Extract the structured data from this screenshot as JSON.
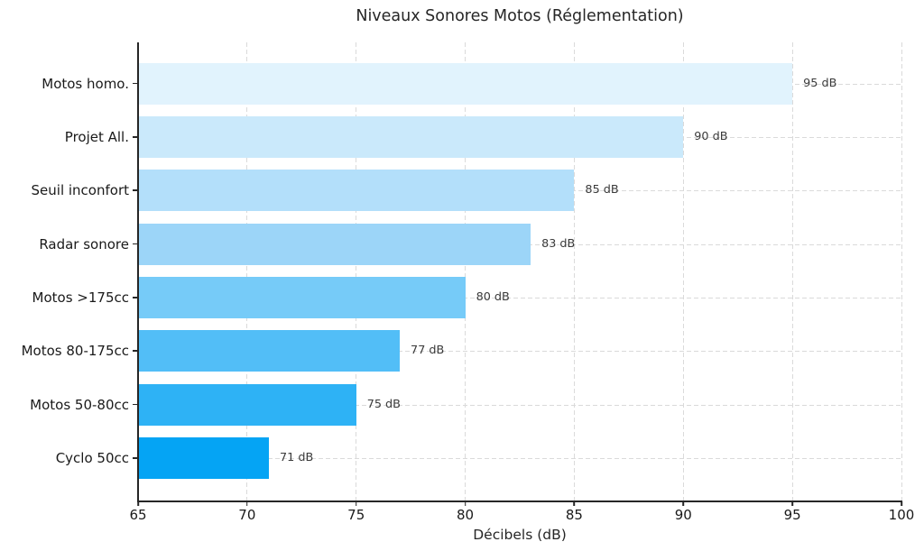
{
  "chart_data": {
    "type": "bar",
    "orientation": "horizontal",
    "title": "Niveaux Sonores Motos (Réglementation)",
    "xlabel": "Décibels (dB)",
    "categories": [
      "Motos homo.",
      "Projet All.",
      "Seuil inconfort",
      "Radar sonore",
      "Motos >175cc",
      "Motos 80-175cc",
      "Motos 50-80cc",
      "Cyclo 50cc"
    ],
    "values": [
      95,
      90,
      85,
      83,
      80,
      77,
      75,
      71
    ],
    "value_labels": [
      "95 dB",
      "90 dB",
      "85 dB",
      "83 dB",
      "80 dB",
      "77 dB",
      "75 dB",
      "71 dB"
    ],
    "bar_colors": [
      "#E1F3FD",
      "#CAE9FB",
      "#B3DFFA",
      "#9CD5F8",
      "#76CBF8",
      "#52BEF7",
      "#2EB2F5",
      "#05A4F4"
    ],
    "xlim": [
      65,
      100
    ],
    "xticks": [
      65,
      70,
      75,
      80,
      85,
      90,
      95,
      100
    ],
    "grid": "dashed",
    "legend": "none"
  }
}
